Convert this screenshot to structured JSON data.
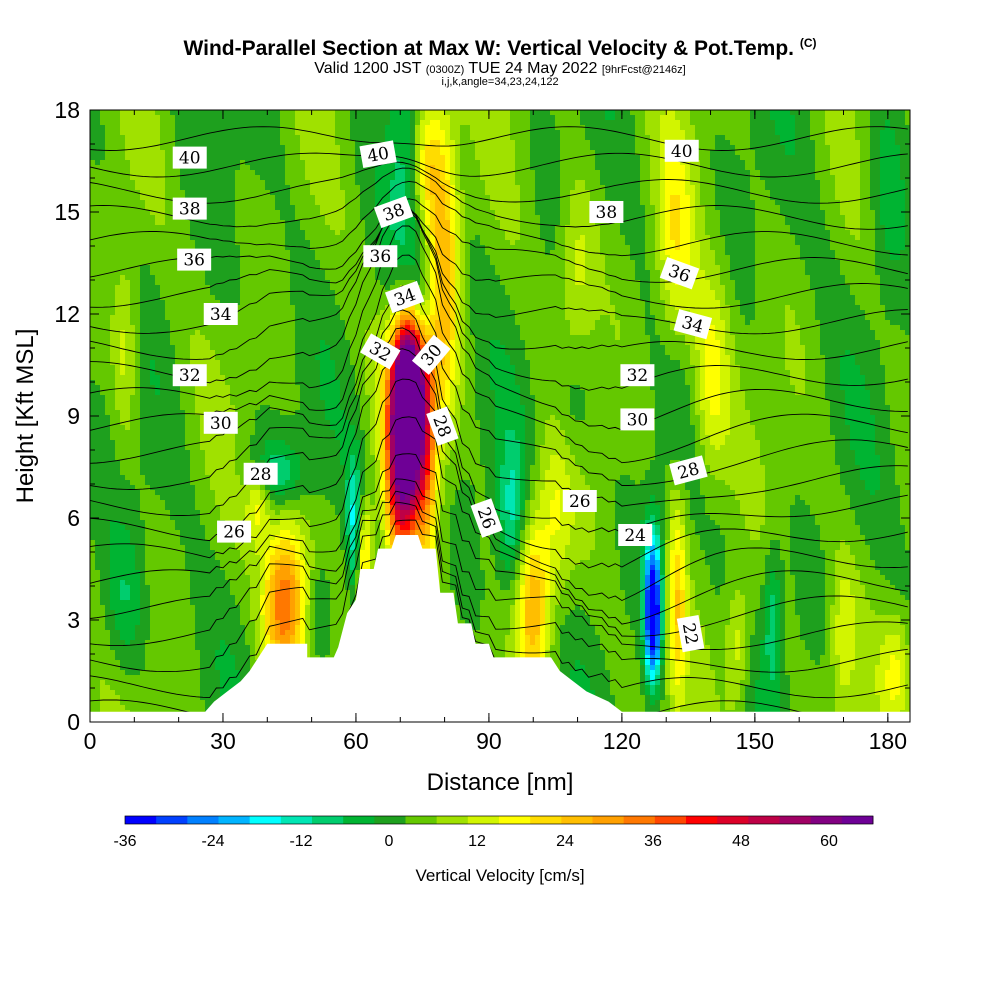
{
  "header": {
    "title": "Wind-Parallel Section at Max W: Vertical Velocity & Pot.Temp.",
    "copyright": "(C)",
    "valid_prefix": "Valid 1200 JST",
    "utc_time": "(0300Z)",
    "valid_date": "TUE 24 May 2022",
    "forecast_info": "[9hrFcst@2146z]",
    "grid_info": "i,j,k,angle=34,23,24,122"
  },
  "colorbar": {
    "label": "Vertical Velocity [cm/s]",
    "tick_labels": [
      "-36",
      "-24",
      "-12",
      "0",
      "12",
      "24",
      "36",
      "48",
      "60"
    ],
    "colors": [
      "#0000ff",
      "#0040ff",
      "#0080ff",
      "#00b4ff",
      "#00ffff",
      "#00e6b4",
      "#00cd6e",
      "#00b432",
      "#1ea01e",
      "#64c800",
      "#a0e100",
      "#d2f500",
      "#ffff00",
      "#ffdc00",
      "#ffbe00",
      "#ffa000",
      "#ff7800",
      "#ff4600",
      "#ff0000",
      "#dc0028",
      "#be0046",
      "#a00064",
      "#820082",
      "#6e0096"
    ]
  },
  "chart_data": {
    "type": "heatmap",
    "title": "Wind-Parallel Section at Max W: Vertical Velocity & Pot.Temp.",
    "xlabel": "Distance [nm]",
    "ylabel": "Height [Kft MSL]",
    "xlim": [
      0,
      185
    ],
    "ylim": [
      0,
      18
    ],
    "xticks": [
      0,
      30,
      60,
      90,
      120,
      150,
      180
    ],
    "yticks": [
      0,
      3,
      6,
      9,
      12,
      15,
      18
    ],
    "fill_variable": "Vertical Velocity [cm/s]",
    "fill_range": [
      -36,
      66
    ],
    "contour_variable": "Potential temperature",
    "background_value": 3,
    "terrain_kft": [
      [
        0,
        0.3
      ],
      [
        26,
        0.3
      ],
      [
        28,
        0.6
      ],
      [
        31,
        0.9
      ],
      [
        34,
        1.2
      ],
      [
        36,
        1.5
      ],
      [
        38,
        1.9
      ],
      [
        40,
        2.3
      ],
      [
        49,
        2.3
      ],
      [
        49,
        1.9
      ],
      [
        55,
        1.9
      ],
      [
        56,
        2.2
      ],
      [
        58,
        3.2
      ],
      [
        60,
        3.6
      ],
      [
        61,
        4.5
      ],
      [
        64,
        4.5
      ],
      [
        65,
        5.1
      ],
      [
        68,
        5.1
      ],
      [
        69,
        5.5
      ],
      [
        74,
        5.5
      ],
      [
        75,
        5.1
      ],
      [
        78,
        5.1
      ],
      [
        79,
        3.8
      ],
      [
        82,
        3.8
      ],
      [
        83,
        2.9
      ],
      [
        86,
        2.9
      ],
      [
        87,
        2.3
      ],
      [
        90,
        2.3
      ],
      [
        91,
        1.9
      ],
      [
        104,
        1.9
      ],
      [
        106,
        1.5
      ],
      [
        109,
        1.2
      ],
      [
        112,
        0.9
      ],
      [
        117,
        0.6
      ],
      [
        120,
        0.3
      ],
      [
        185,
        0.3
      ]
    ],
    "features": [
      {
        "x": 72,
        "y": 8.8,
        "value": 64,
        "sx": 2.2,
        "sy": 2.2
      },
      {
        "x": 72,
        "y": 10.0,
        "value": 40,
        "sx": 3.5,
        "sy": 1.4
      },
      {
        "x": 69,
        "y": 7.2,
        "value": 30,
        "sx": 2.0,
        "sy": 1.8
      },
      {
        "x": 76,
        "y": 7.5,
        "value": 24,
        "sx": 1.8,
        "sy": 2.0
      },
      {
        "x": 80,
        "y": 13.5,
        "value": 22,
        "sx": 2.5,
        "sy": 3.2
      },
      {
        "x": 76,
        "y": 16.5,
        "value": 18,
        "sx": 2.5,
        "sy": 1.6
      },
      {
        "x": 74,
        "y": 12.5,
        "value": -12,
        "sx": 2.5,
        "sy": 1.5
      },
      {
        "x": 71,
        "y": 15.5,
        "value": -10,
        "sx": 3.0,
        "sy": 2.5
      },
      {
        "x": 43,
        "y": 3.5,
        "value": 24,
        "sx": 3.0,
        "sy": 1.6
      },
      {
        "x": 46,
        "y": 3.8,
        "value": 14,
        "sx": 3.0,
        "sy": 1.7
      },
      {
        "x": 52,
        "y": 3.2,
        "value": -8,
        "sx": 2.0,
        "sy": 1.0
      },
      {
        "x": 59.5,
        "y": 5.8,
        "value": -18,
        "sx": 1.2,
        "sy": 1.4
      },
      {
        "x": 62,
        "y": 4.8,
        "value": 20,
        "sx": 1.3,
        "sy": 1.2
      },
      {
        "x": 42,
        "y": 7.3,
        "value": -12,
        "sx": 4.5,
        "sy": 0.7
      },
      {
        "x": 38,
        "y": 6.5,
        "value": 14,
        "sx": 2.0,
        "sy": 0.8
      },
      {
        "x": 95,
        "y": 6.0,
        "value": -14,
        "sx": 2.2,
        "sy": 1.6
      },
      {
        "x": 100,
        "y": 3.5,
        "value": 22,
        "sx": 2.5,
        "sy": 1.8
      },
      {
        "x": 105,
        "y": 6.2,
        "value": 12,
        "sx": 3.0,
        "sy": 2.0
      },
      {
        "x": 127,
        "y": 2.9,
        "value": -36,
        "sx": 1.3,
        "sy": 1.3
      },
      {
        "x": 127,
        "y": 4.4,
        "value": -16,
        "sx": 1.6,
        "sy": 1.4
      },
      {
        "x": 132.5,
        "y": 3.5,
        "value": 18,
        "sx": 1.5,
        "sy": 2.2
      },
      {
        "x": 140,
        "y": 10.0,
        "value": 14,
        "sx": 3.0,
        "sy": 2.2
      },
      {
        "x": 132,
        "y": 14.0,
        "value": 14,
        "sx": 3.0,
        "sy": 2.2
      },
      {
        "x": 154,
        "y": 3.0,
        "value": -12,
        "sx": 1.4,
        "sy": 1.5
      },
      {
        "x": 146,
        "y": 2.2,
        "value": 12,
        "sx": 2.0,
        "sy": 1.4
      },
      {
        "x": 182,
        "y": 1.5,
        "value": 12,
        "sx": 2.5,
        "sy": 1.2
      },
      {
        "x": 170,
        "y": 2.5,
        "value": 10,
        "sx": 2.0,
        "sy": 1.6
      },
      {
        "x": 110,
        "y": 13.5,
        "value": 10,
        "sx": 3.0,
        "sy": 2.0
      },
      {
        "x": 108,
        "y": 9.0,
        "value": -8,
        "sx": 3.5,
        "sy": 1.5
      },
      {
        "x": 8,
        "y": 11.0,
        "value": 10,
        "sx": 2.0,
        "sy": 2.0
      },
      {
        "x": 8,
        "y": 3.5,
        "value": -8,
        "sx": 3.0,
        "sy": 1.5
      },
      {
        "x": 180,
        "y": 16.0,
        "value": -7,
        "sx": 3.0,
        "sy": 2.5
      }
    ],
    "contour_labels": [
      {
        "text": "40",
        "x": 22.5,
        "y": 16.6,
        "angle": 0
      },
      {
        "text": "38",
        "x": 22.5,
        "y": 15.1,
        "angle": 0
      },
      {
        "text": "36",
        "x": 23.5,
        "y": 13.6,
        "angle": 0
      },
      {
        "text": "34",
        "x": 29.5,
        "y": 12.0,
        "angle": 0
      },
      {
        "text": "32",
        "x": 22.5,
        "y": 10.2,
        "angle": 0
      },
      {
        "text": "30",
        "x": 29.5,
        "y": 8.8,
        "angle": 0
      },
      {
        "text": "28",
        "x": 38.5,
        "y": 7.3,
        "angle": 0
      },
      {
        "text": "26",
        "x": 32.5,
        "y": 5.6,
        "angle": 0
      },
      {
        "text": "40",
        "x": 65,
        "y": 16.7,
        "angle": 10
      },
      {
        "text": "38",
        "x": 68.5,
        "y": 15.0,
        "angle": 20
      },
      {
        "text": "36",
        "x": 65.5,
        "y": 13.7,
        "angle": 0
      },
      {
        "text": "34",
        "x": 71,
        "y": 12.5,
        "angle": 20
      },
      {
        "text": "32",
        "x": 65.5,
        "y": 10.9,
        "angle": -30
      },
      {
        "text": "30",
        "x": 77,
        "y": 10.8,
        "angle": 50
      },
      {
        "text": "28",
        "x": 79.5,
        "y": 8.7,
        "angle": -70
      },
      {
        "text": "26",
        "x": 89.5,
        "y": 6.0,
        "angle": -70
      },
      {
        "text": "26",
        "x": 110.5,
        "y": 6.5,
        "angle": 0
      },
      {
        "text": "24",
        "x": 123,
        "y": 5.5,
        "angle": 0
      },
      {
        "text": "22",
        "x": 135.5,
        "y": 2.6,
        "angle": -80
      },
      {
        "text": "28",
        "x": 135,
        "y": 7.4,
        "angle": 15
      },
      {
        "text": "30",
        "x": 123.5,
        "y": 8.9,
        "angle": 0
      },
      {
        "text": "32",
        "x": 123.5,
        "y": 10.2,
        "angle": 0
      },
      {
        "text": "34",
        "x": 136,
        "y": 11.7,
        "angle": -15
      },
      {
        "text": "36",
        "x": 133,
        "y": 13.2,
        "angle": -20
      },
      {
        "text": "38",
        "x": 116.5,
        "y": 15.0,
        "angle": 0
      },
      {
        "text": "40",
        "x": 133.5,
        "y": 16.8,
        "angle": 0
      }
    ]
  }
}
